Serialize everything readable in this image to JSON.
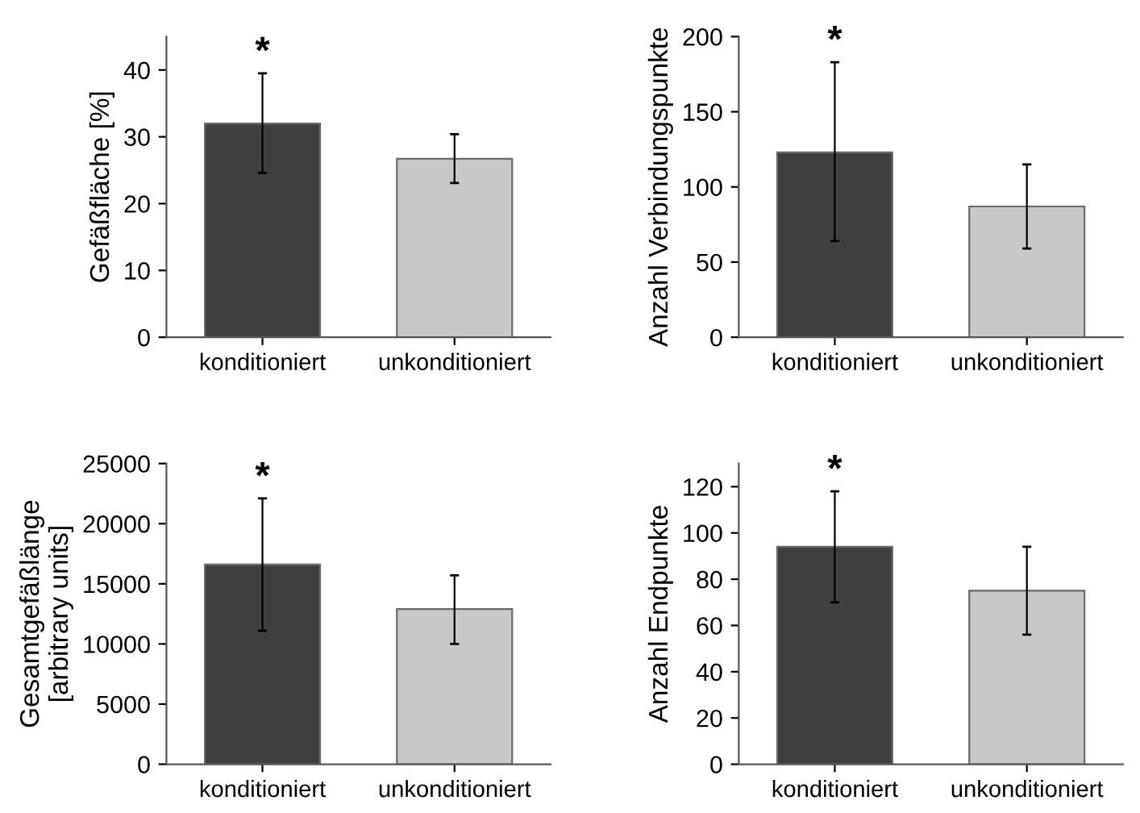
{
  "chart_data": [
    {
      "type": "bar",
      "categories": [
        "konditioniert",
        "unkonditioniert"
      ],
      "ylabel": "Gefäßfläche [%]",
      "ylim": [
        0,
        45
      ],
      "yticks": [
        0,
        10,
        20,
        30,
        40
      ],
      "colors": [
        "#404040",
        "#c8c8c8"
      ],
      "values": [
        32.0,
        26.7
      ],
      "errors": [
        [
          24.6,
          39.5
        ],
        [
          23.1,
          30.4
        ]
      ],
      "annotations": [
        {
          "text": "*",
          "x": "konditioniert",
          "y": 39.5
        }
      ]
    },
    {
      "type": "bar",
      "categories": [
        "konditioniert",
        "unkonditioniert"
      ],
      "ylabel": "Anzahl Verbindungspunkte",
      "ylim": [
        0,
        200
      ],
      "yticks": [
        0,
        50,
        100,
        150,
        200
      ],
      "colors": [
        "#404040",
        "#c8c8c8"
      ],
      "values": [
        123,
        87
      ],
      "errors": [
        [
          64,
          183
        ],
        [
          59,
          115
        ]
      ],
      "annotations": [
        {
          "text": "*",
          "x": "konditioniert",
          "y": 183
        }
      ]
    },
    {
      "type": "bar",
      "categories": [
        "konditioniert",
        "unkonditioniert"
      ],
      "ylabel": "Gesamtgefäßlänge\n[arbitrary units]",
      "ylim": [
        0,
        25000
      ],
      "yticks": [
        0,
        5000,
        10000,
        15000,
        20000,
        25000
      ],
      "colors": [
        "#404040",
        "#c8c8c8"
      ],
      "values": [
        16600,
        12900
      ],
      "errors": [
        [
          11100,
          22100
        ],
        [
          10000,
          15700
        ]
      ],
      "annotations": [
        {
          "text": "*",
          "x": "konditioniert",
          "y": 22100
        }
      ]
    },
    {
      "type": "bar",
      "categories": [
        "konditioniert",
        "unkonditioniert"
      ],
      "ylabel": "Anzahl Endpunkte",
      "ylim": [
        0,
        130
      ],
      "yticks": [
        0,
        20,
        40,
        60,
        80,
        100,
        120
      ],
      "colors": [
        "#404040",
        "#c8c8c8"
      ],
      "values": [
        94,
        75
      ],
      "errors": [
        [
          70,
          118
        ],
        [
          56,
          94
        ]
      ],
      "annotations": [
        {
          "text": "*",
          "x": "konditioniert",
          "y": 118
        }
      ]
    }
  ]
}
